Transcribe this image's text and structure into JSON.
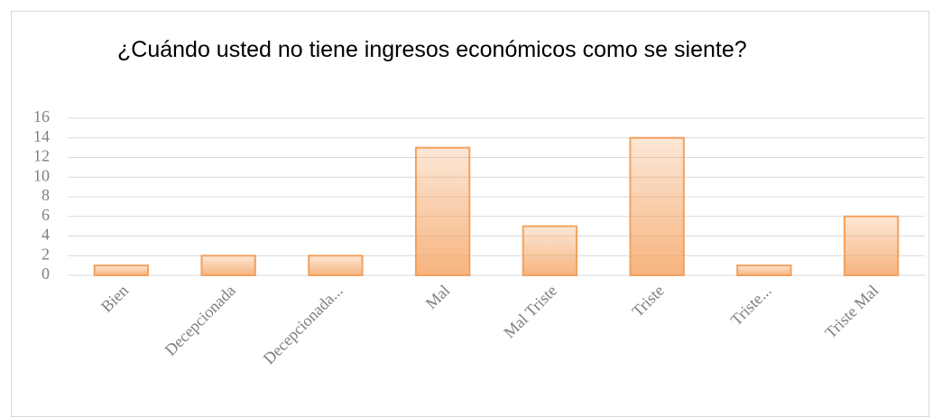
{
  "chart_data": {
    "type": "bar",
    "title": "¿Cuándo usted no tiene ingresos económicos como se siente?",
    "categories": [
      "Bien",
      "Decepcionada",
      "Decepcionada...",
      "Mal",
      "Mal Triste",
      "Triste",
      "Triste...",
      "Triste Mal"
    ],
    "values": [
      1,
      2,
      2,
      13,
      5,
      14,
      1,
      6
    ],
    "color": "#f4a15e",
    "ylim": [
      0,
      16
    ],
    "yticks": [
      0,
      2,
      4,
      6,
      8,
      10,
      12,
      14,
      16
    ],
    "grid": true
  }
}
